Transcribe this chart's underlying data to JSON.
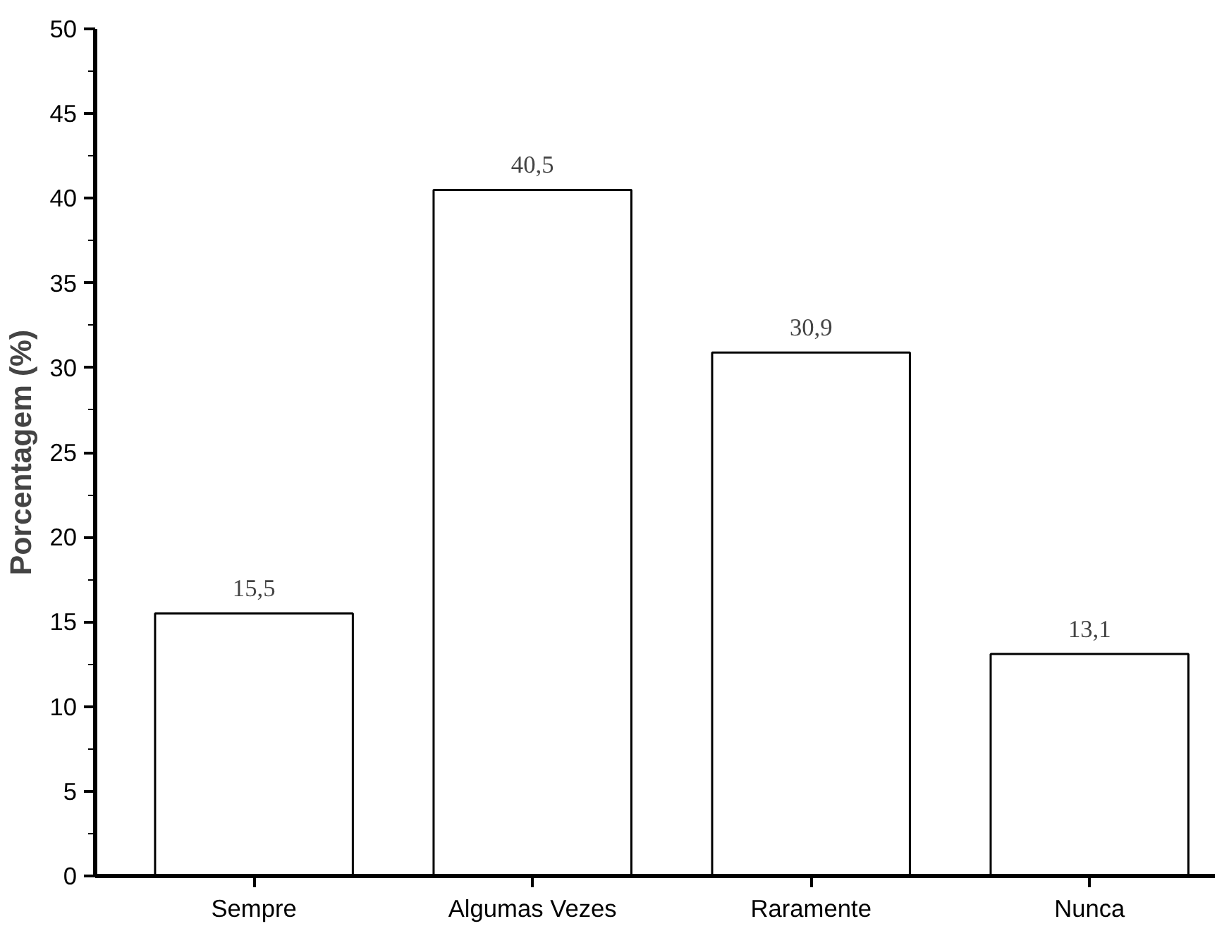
{
  "chart_data": {
    "type": "bar",
    "ylabel": "Porcentagem (%)",
    "categories": [
      "Sempre",
      "Algumas Vezes",
      "Raramente",
      "Nunca"
    ],
    "values": [
      15.5,
      40.5,
      30.9,
      13.1
    ],
    "value_labels": [
      "15,5",
      "40,5",
      "30,9",
      "13,1"
    ],
    "color": "#ffffff",
    "ylim": [
      0,
      50
    ],
    "yticks": [
      0,
      5,
      10,
      15,
      20,
      25,
      30,
      35,
      40,
      45,
      50
    ],
    "grid": false
  }
}
